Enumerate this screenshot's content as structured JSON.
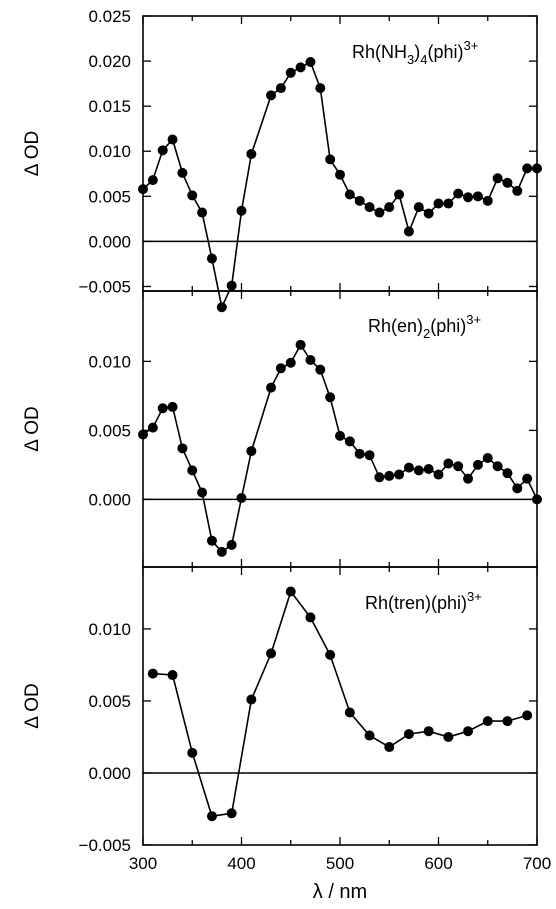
{
  "figure": {
    "xlabel": "λ / nm",
    "ylabel": "Δ OD",
    "xticks": [
      "300",
      "400",
      "500",
      "600",
      "700"
    ]
  },
  "chart_data": [
    {
      "type": "line",
      "label_main": "Rh(NH",
      "label_parts": [
        "3",
        ")",
        "4",
        "(phi)",
        "3+"
      ],
      "label_text": "Rh(NH3)4(phi)3+",
      "xlim": [
        300,
        700
      ],
      "ylim": [
        -0.0055,
        0.025
      ],
      "ytick_labels": [
        "0.025",
        "0.020",
        "0.015",
        "0.010",
        "0.005",
        "0.000",
        "−0.005"
      ],
      "ytick_values": [
        0.025,
        0.02,
        0.015,
        0.01,
        0.005,
        0.0,
        -0.005
      ],
      "zero_line": true,
      "marker": "filled-circle",
      "color": "#000000",
      "x": [
        300,
        310,
        320,
        330,
        340,
        350,
        360,
        370,
        380,
        390,
        400,
        410,
        430,
        440,
        450,
        460,
        470,
        480,
        490,
        500,
        510,
        520,
        530,
        540,
        550,
        560,
        570,
        580,
        590,
        600,
        610,
        620,
        630,
        640,
        650,
        660,
        670,
        680,
        690,
        700
      ],
      "y": [
        0.0058,
        0.0068,
        0.0101,
        0.0113,
        0.0076,
        0.0051,
        0.0032,
        -0.0019,
        -0.0073,
        -0.0049,
        0.0034,
        0.0097,
        0.0162,
        0.017,
        0.0187,
        0.0193,
        0.0199,
        0.017,
        0.0091,
        0.0074,
        0.0052,
        0.0045,
        0.0038,
        0.0032,
        0.0038,
        0.0052,
        0.0011,
        0.0038,
        0.0031,
        0.0042,
        0.0042,
        0.0053,
        0.0049,
        0.005,
        0.0045,
        0.007,
        0.0065,
        0.0056,
        0.0081,
        0.0081
      ]
    },
    {
      "type": "line",
      "label_main": "Rh(en)",
      "label_parts": [
        "2",
        "(phi)",
        "3+"
      ],
      "label_text": "Rh(en)2(phi)3+",
      "xlim": [
        300,
        700
      ],
      "ylim": [
        -0.0049,
        0.0151
      ],
      "ytick_labels": [
        "0.010",
        "0.005",
        "0.000"
      ],
      "ytick_values": [
        0.01,
        0.005,
        0.0
      ],
      "zero_line": true,
      "marker": "filled-circle",
      "color": "#000000",
      "x": [
        300,
        310,
        320,
        330,
        340,
        350,
        360,
        370,
        380,
        390,
        400,
        410,
        430,
        440,
        450,
        460,
        470,
        480,
        490,
        500,
        510,
        520,
        530,
        540,
        550,
        560,
        570,
        580,
        590,
        600,
        610,
        620,
        630,
        640,
        650,
        660,
        670,
        680,
        690,
        700
      ],
      "y": [
        0.0047,
        0.0052,
        0.0066,
        0.0067,
        0.0037,
        0.0021,
        0.0005,
        -0.003,
        -0.0038,
        -0.0033,
        0.0001,
        0.0035,
        0.0081,
        0.0095,
        0.0099,
        0.0112,
        0.0101,
        0.0094,
        0.0074,
        0.0046,
        0.0042,
        0.0033,
        0.0032,
        0.0016,
        0.0017,
        0.0018,
        0.0023,
        0.0021,
        0.0022,
        0.0018,
        0.0026,
        0.0024,
        0.0015,
        0.0025,
        0.003,
        0.0024,
        0.0019,
        0.0008,
        0.0015,
        0.0
      ]
    },
    {
      "type": "line",
      "label_main": "Rh(tren)(phi)",
      "label_parts": [
        "3+"
      ],
      "label_text": "Rh(tren)(phi)3+",
      "xlim": [
        300,
        700
      ],
      "ylim": [
        -0.005,
        0.0143
      ],
      "ytick_labels": [
        "0.010",
        "0.005",
        "0.000",
        "−0.005"
      ],
      "ytick_values": [
        0.01,
        0.005,
        0.0,
        -0.005
      ],
      "zero_line": true,
      "marker": "filled-circle",
      "color": "#000000",
      "x": [
        310,
        330,
        350,
        370,
        390,
        410,
        430,
        450,
        470,
        490,
        510,
        530,
        550,
        570,
        590,
        610,
        630,
        650,
        670,
        690
      ],
      "y": [
        0.0069,
        0.0068,
        0.0014,
        -0.003,
        -0.0028,
        0.0051,
        0.0083,
        0.0126,
        0.0108,
        0.0082,
        0.0042,
        0.0026,
        0.0018,
        0.0027,
        0.0029,
        0.0025,
        0.0029,
        0.0036,
        0.0036,
        0.004
      ]
    }
  ]
}
